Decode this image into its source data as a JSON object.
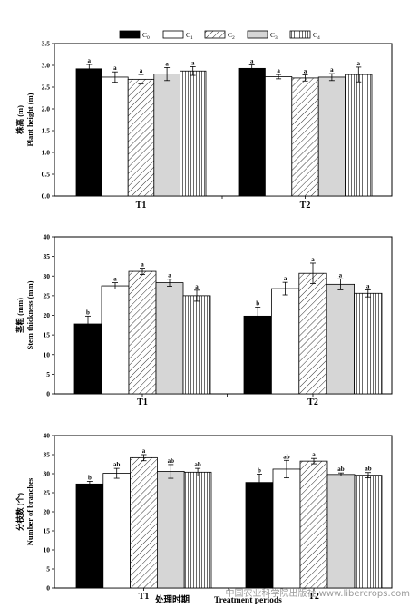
{
  "chart_data": [
    {
      "type": "bar",
      "categories": [
        "T1",
        "T2"
      ],
      "series": [
        {
          "name": "C0",
          "values": [
            2.92,
            2.93
          ],
          "errors": [
            0.1,
            0.08
          ],
          "letters": [
            "a",
            "a"
          ]
        },
        {
          "name": "C1",
          "values": [
            2.73,
            2.74
          ],
          "errors": [
            0.12,
            0.05
          ],
          "letters": [
            "a",
            "a"
          ]
        },
        {
          "name": "C2",
          "values": [
            2.68,
            2.71
          ],
          "errors": [
            0.11,
            0.07
          ],
          "letters": [
            "a",
            "a"
          ]
        },
        {
          "name": "C3",
          "values": [
            2.8,
            2.73
          ],
          "errors": [
            0.15,
            0.08
          ],
          "letters": [
            "a",
            "a"
          ]
        },
        {
          "name": "C4",
          "values": [
            2.87,
            2.79
          ],
          "errors": [
            0.1,
            0.17
          ],
          "letters": [
            "a",
            "a"
          ]
        }
      ],
      "ylabel_cn": "株高 (m)",
      "ylabel": "Plant height (m)",
      "ylim": [
        0,
        3.5
      ],
      "yticks": [
        "0.0",
        "0.5",
        "1.0",
        "1.5",
        "2.0",
        "2.5",
        "3.0",
        "3.5"
      ]
    },
    {
      "type": "bar",
      "categories": [
        "T1",
        "T2"
      ],
      "series": [
        {
          "name": "C0",
          "values": [
            17.8,
            19.8
          ],
          "errors": [
            2.0,
            2.3
          ],
          "letters": [
            "b",
            "b"
          ]
        },
        {
          "name": "C1",
          "values": [
            27.5,
            26.8
          ],
          "errors": [
            0.8,
            1.6
          ],
          "letters": [
            "a",
            "a"
          ]
        },
        {
          "name": "C2",
          "values": [
            31.2,
            30.7
          ],
          "errors": [
            0.8,
            2.6
          ],
          "letters": [
            "a",
            "a"
          ]
        },
        {
          "name": "C3",
          "values": [
            28.3,
            27.9
          ],
          "errors": [
            0.9,
            1.4
          ],
          "letters": [
            "a",
            "a"
          ]
        },
        {
          "name": "C4",
          "values": [
            25.0,
            25.6
          ],
          "errors": [
            1.4,
            0.9
          ],
          "letters": [
            "a",
            "a"
          ]
        }
      ],
      "ylabel_cn": "茎粗 (mm)",
      "ylabel": "Stem thickness (mm)",
      "ylim": [
        0,
        40
      ],
      "yticks": [
        "0",
        "5",
        "10",
        "15",
        "20",
        "25",
        "30",
        "35",
        "40"
      ]
    },
    {
      "type": "bar",
      "categories": [
        "T1",
        "T2"
      ],
      "series": [
        {
          "name": "C0",
          "values": [
            27.3,
            27.7
          ],
          "errors": [
            0.7,
            2.2
          ],
          "letters": [
            "b",
            "b"
          ]
        },
        {
          "name": "C1",
          "values": [
            30.1,
            31.2
          ],
          "errors": [
            1.3,
            2.3
          ],
          "letters": [
            "ab",
            "ab"
          ]
        },
        {
          "name": "C2",
          "values": [
            34.2,
            33.3
          ],
          "errors": [
            0.8,
            0.7
          ],
          "letters": [
            "a",
            "a"
          ]
        },
        {
          "name": "C3",
          "values": [
            30.6,
            29.8
          ],
          "errors": [
            1.8,
            0.4
          ],
          "letters": [
            "ab",
            "ab"
          ]
        },
        {
          "name": "C4",
          "values": [
            30.4,
            29.6
          ],
          "errors": [
            1.0,
            0.7
          ],
          "letters": [
            "ab",
            "ab"
          ]
        }
      ],
      "ylabel_cn": "分枝数 (个)",
      "ylabel": "Number of branches",
      "ylim": [
        0,
        40
      ],
      "yticks": [
        "0",
        "5",
        "10",
        "15",
        "20",
        "25",
        "30",
        "35",
        "40"
      ],
      "xlabel_cn": "处理时期",
      "xlabel": "Treatment periods"
    }
  ],
  "legend": [
    {
      "base": "C",
      "sub": "0"
    },
    {
      "base": "C",
      "sub": "1"
    },
    {
      "base": "C",
      "sub": "2"
    },
    {
      "base": "C",
      "sub": "3"
    },
    {
      "base": "C",
      "sub": "4"
    }
  ],
  "watermark": "中国农业科学院出版社 www.libercrops.com"
}
